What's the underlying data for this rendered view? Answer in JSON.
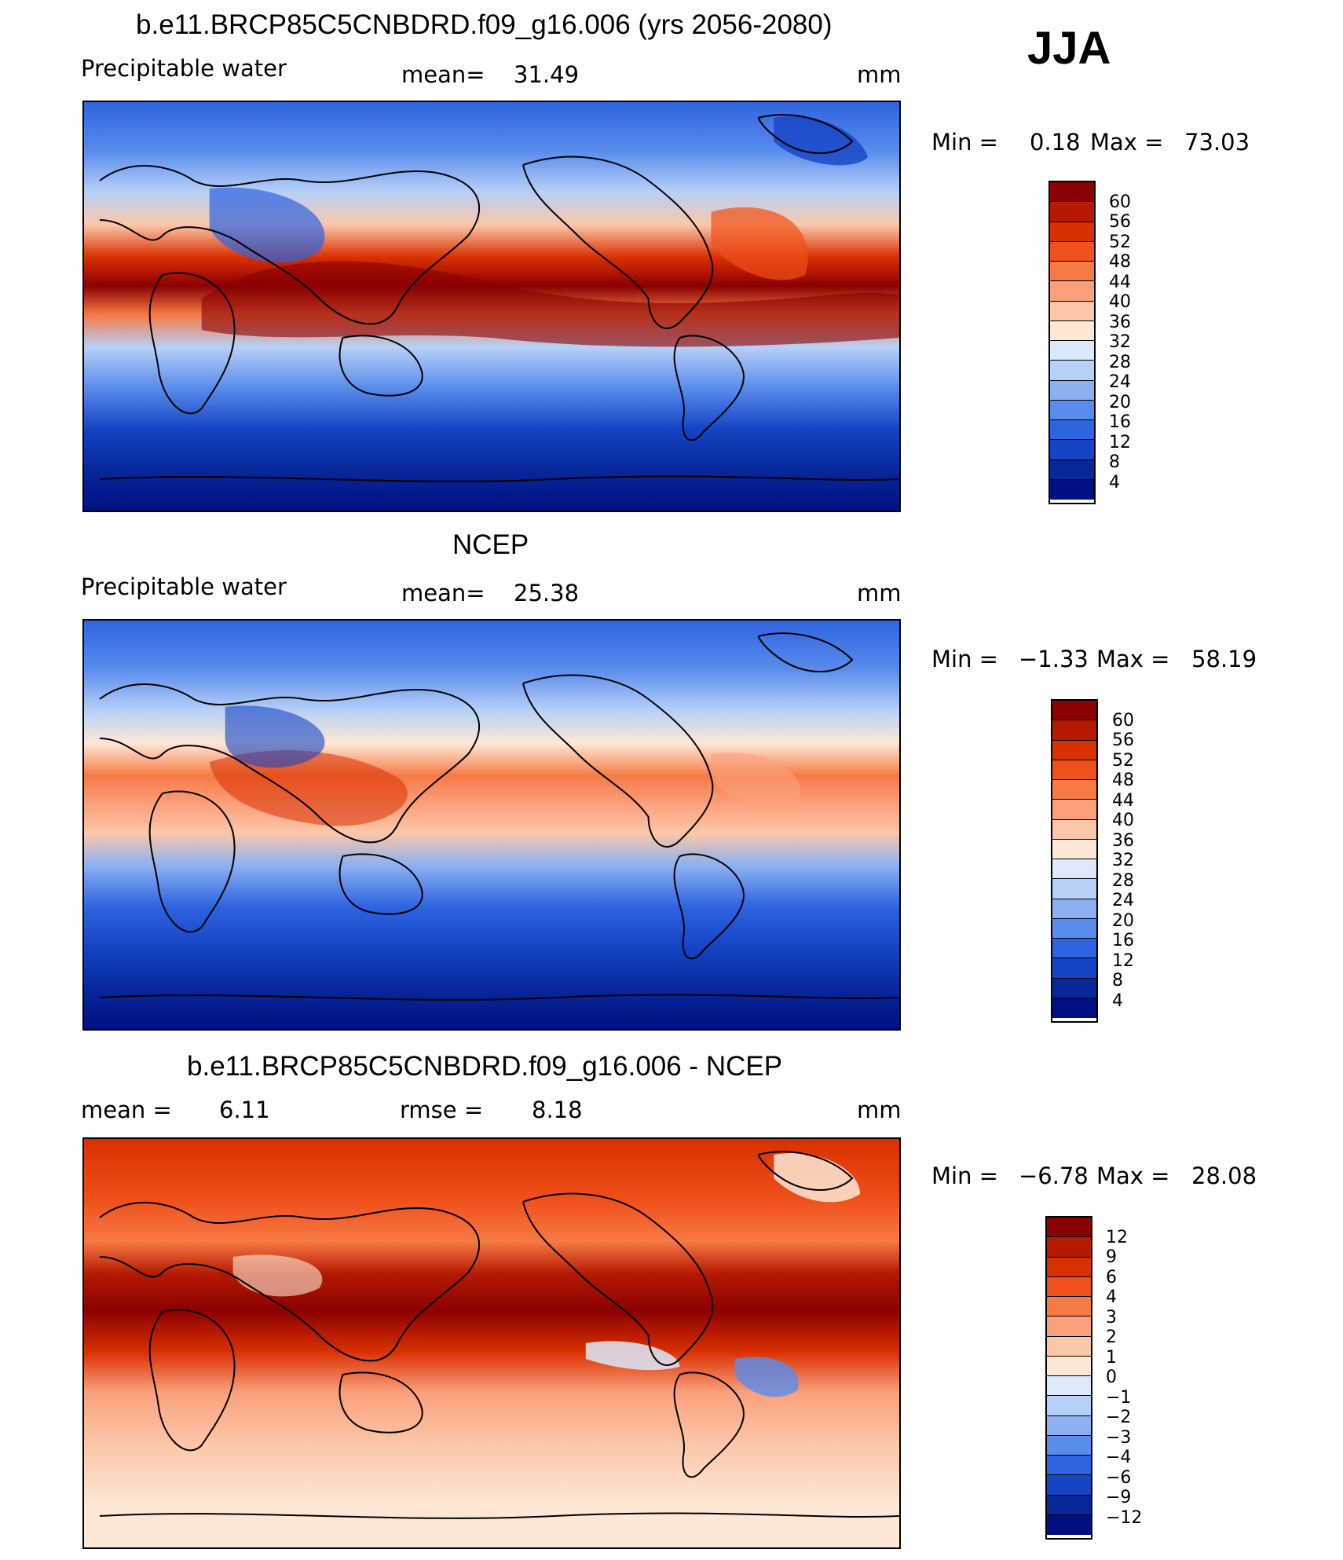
{
  "season": "JJA",
  "panels": [
    {
      "title": "b.e11.BRCP85C5CNBDRD.f09_g16.006 (yrs 2056-2080)",
      "variable": "Precipitable water",
      "mean_label": "mean=",
      "mean_value": "31.49",
      "units": "mm",
      "min_label": "Min =",
      "min_value": "0.18",
      "max_label": "Max =",
      "max_value": "73.03",
      "colorbar_labels": [
        "60",
        "56",
        "52",
        "48",
        "44",
        "40",
        "36",
        "32",
        "28",
        "24",
        "20",
        "16",
        "12",
        "8",
        "4"
      ],
      "colorbar_colors": [
        "#8b0000",
        "#b51a00",
        "#d93000",
        "#f0501a",
        "#f77a45",
        "#fba07c",
        "#fcc7a9",
        "#fde8d6",
        "#dbe9fb",
        "#b7d0f7",
        "#8cb1f2",
        "#5a8cec",
        "#2e64e0",
        "#1544c4",
        "#08289a",
        "#001082"
      ]
    },
    {
      "title": "NCEP",
      "variable": "Precipitable water",
      "mean_label": "mean=",
      "mean_value": "25.38",
      "units": "mm",
      "min_label": "Min =",
      "min_value": "−1.33",
      "max_label": "Max =",
      "max_value": "58.19",
      "colorbar_labels": [
        "60",
        "56",
        "52",
        "48",
        "44",
        "40",
        "36",
        "32",
        "28",
        "24",
        "20",
        "16",
        "12",
        "8",
        "4"
      ],
      "colorbar_colors": [
        "#8b0000",
        "#b51a00",
        "#d93000",
        "#f0501a",
        "#f77a45",
        "#fba07c",
        "#fcc7a9",
        "#fde8d6",
        "#dbe9fb",
        "#b7d0f7",
        "#8cb1f2",
        "#5a8cec",
        "#2e64e0",
        "#1544c4",
        "#08289a",
        "#001082"
      ]
    },
    {
      "title": "b.e11.BRCP85C5CNBDRD.f09_g16.006 - NCEP",
      "mean_label": "mean =",
      "mean_value": "6.11",
      "rmse_label": "rmse =",
      "rmse_value": "8.18",
      "units": "mm",
      "min_label": "Min =",
      "min_value": "−6.78",
      "max_label": "Max =",
      "max_value": "28.08",
      "colorbar_labels": [
        "12",
        "9",
        "6",
        "4",
        "3",
        "2",
        "1",
        "0",
        "−1",
        "−2",
        "−3",
        "−4",
        "−6",
        "−9",
        "−12"
      ],
      "colorbar_colors": [
        "#8b0000",
        "#b51a00",
        "#d93000",
        "#f0501a",
        "#f77a45",
        "#fba07c",
        "#fcc7a9",
        "#fde8d6",
        "#dbe9fb",
        "#b7d0f7",
        "#8cb1f2",
        "#5a8cec",
        "#2e64e0",
        "#1544c4",
        "#08289a",
        "#001082"
      ]
    }
  ]
}
